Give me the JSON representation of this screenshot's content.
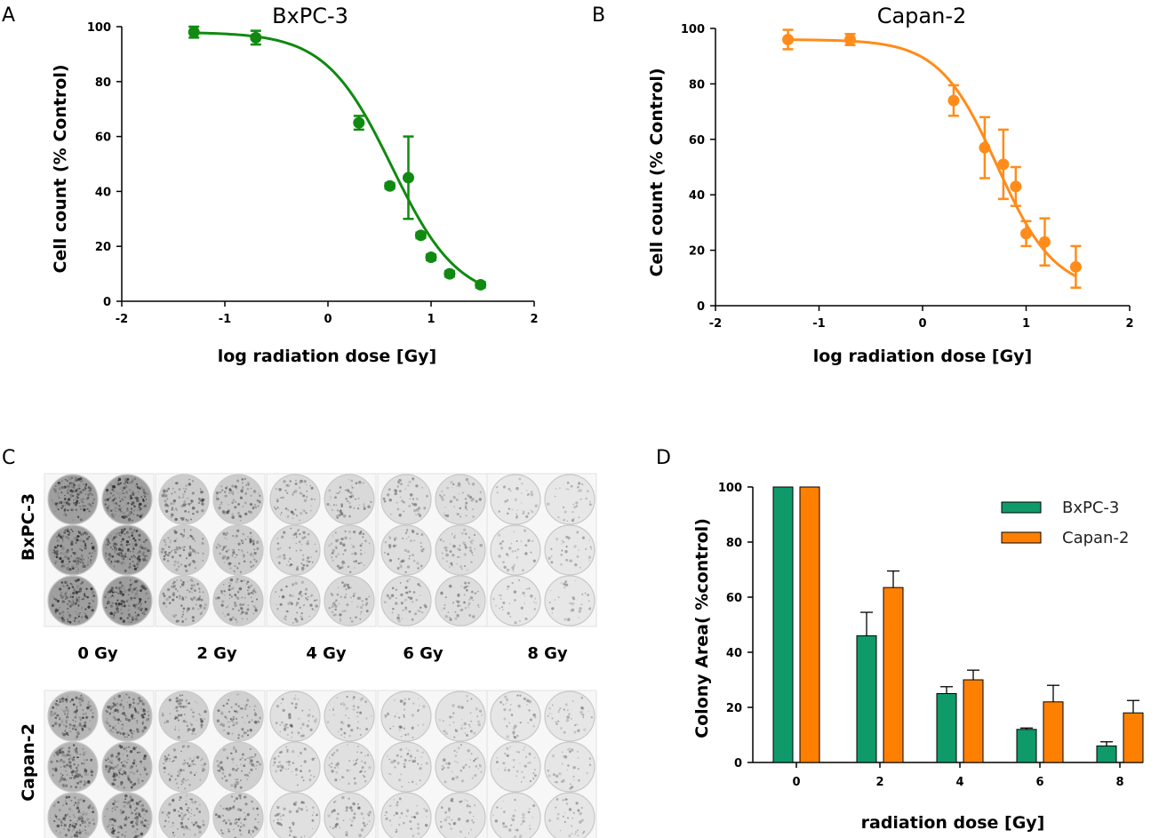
{
  "panels": {
    "A": "A",
    "B": "B",
    "C": "C",
    "D": "D"
  },
  "colors": {
    "bxpc3": "#108a10",
    "capan2": "#ff8c1a",
    "bar_bxpc3": "#0f9a6a",
    "bar_capan2": "#ff8000",
    "axis": "#000000"
  },
  "chart_data": [
    {
      "id": "A",
      "type": "scatter",
      "title": "BxPC-3",
      "xlabel": "log radiation dose [Gy]",
      "ylabel": "Cell count (% Control)",
      "xlim": [
        -2,
        2
      ],
      "ylim": [
        0,
        100
      ],
      "xticks": [
        "-2",
        "-1",
        "0",
        "1",
        "2"
      ],
      "yticks": [
        "0",
        "20",
        "40",
        "60",
        "80",
        "100"
      ],
      "fit": {
        "model": "sigmoid",
        "top": 98,
        "bottom": 0,
        "logIC50": 0.62,
        "hill": 1.35,
        "x_range": [
          -1.3,
          1.48
        ]
      },
      "series": [
        {
          "name": "BxPC-3",
          "x": [
            -1.3,
            -0.7,
            0.3,
            0.6,
            0.78,
            0.9,
            1.0,
            1.18,
            1.48
          ],
          "y": [
            98,
            96,
            65,
            42,
            45,
            24,
            16,
            10,
            6
          ],
          "err": [
            2,
            2.5,
            2.5,
            1,
            15,
            1,
            1,
            1,
            1
          ]
        }
      ]
    },
    {
      "id": "B",
      "type": "scatter",
      "title": "Capan-2",
      "xlabel": "log radiation dose [Gy]",
      "ylabel": "Cell count (% Control)",
      "xlim": [
        -2,
        2
      ],
      "ylim": [
        0,
        100
      ],
      "xticks": [
        "-2",
        "-1",
        "0",
        "1",
        "2"
      ],
      "yticks": [
        "0",
        "20",
        "40",
        "60",
        "80",
        "100"
      ],
      "fit": {
        "model": "sigmoid",
        "top": 96,
        "bottom": 5,
        "logIC50": 0.72,
        "hill": 1.55,
        "x_range": [
          -1.3,
          1.48
        ]
      },
      "series": [
        {
          "name": "Capan-2",
          "x": [
            -1.3,
            -0.7,
            0.3,
            0.6,
            0.78,
            0.9,
            1.0,
            1.18,
            1.48
          ],
          "y": [
            96,
            96,
            74,
            57,
            51,
            43,
            26,
            23,
            14
          ],
          "err": [
            3.5,
            2,
            5.5,
            11,
            12.5,
            7,
            4.5,
            8.5,
            7.5
          ]
        }
      ]
    },
    {
      "id": "D",
      "type": "bar",
      "ylabel": "Colony Area( %control)",
      "xlabel": "radiation dose [Gy]",
      "ylim": [
        0,
        100
      ],
      "yticks": [
        "0",
        "20",
        "40",
        "60",
        "80",
        "100"
      ],
      "categories": [
        "0",
        "2",
        "4",
        "6",
        "8"
      ],
      "legend_position": "top-right",
      "series": [
        {
          "name": "BxPC-3",
          "values": [
            100,
            46,
            25,
            12,
            6
          ],
          "err": [
            0,
            8.5,
            2.5,
            0.5,
            1.5
          ]
        },
        {
          "name": "Capan-2",
          "values": [
            100,
            63.5,
            30,
            22,
            18
          ],
          "err": [
            0,
            6,
            3.5,
            6,
            4.5
          ]
        }
      ]
    }
  ],
  "panel_c": {
    "rows": [
      "BxPC-3",
      "Capan-2"
    ],
    "doses": [
      "0 Gy",
      "2 Gy",
      "4 Gy",
      "6 Gy",
      "8 Gy"
    ],
    "well_density": {
      "BxPC-3": [
        0.85,
        0.35,
        0.2,
        0.15,
        0.05
      ],
      "Capan-2": [
        0.6,
        0.3,
        0.12,
        0.09,
        0.06
      ]
    }
  }
}
